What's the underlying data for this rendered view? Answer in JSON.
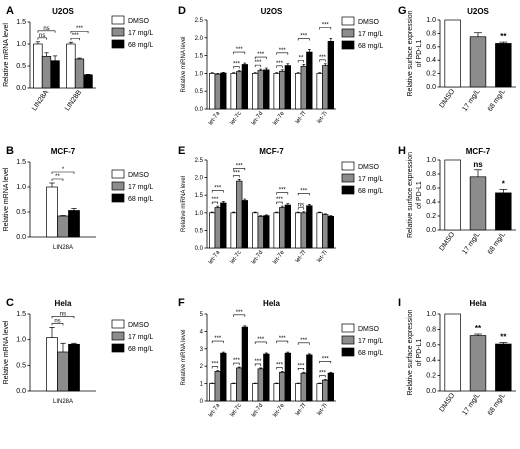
{
  "figure": {
    "panel_labels": [
      "A",
      "B",
      "C",
      "D",
      "E",
      "F",
      "G",
      "H",
      "I"
    ],
    "legend_labels": [
      "DMSO",
      "17 mg/L",
      "68 mg/L"
    ],
    "colors": {
      "dmso": "#ffffff",
      "c17": "#8c8c8c",
      "c68": "#000000",
      "stroke": "#000000"
    }
  },
  "chart_data": [
    {
      "id": "A",
      "type": "bar",
      "title": "U2OS",
      "ylabel": "Relative mRNA level",
      "xlabel": "",
      "categories": [
        "LIN28A",
        "LIN28B"
      ],
      "series": [
        {
          "name": "DMSO",
          "values": [
            1.0,
            1.0
          ],
          "errors": [
            0.05,
            0.04
          ]
        },
        {
          "name": "17 mg/L",
          "values": [
            0.72,
            0.66
          ],
          "errors": [
            0.08,
            0.02
          ]
        },
        {
          "name": "68 mg/L",
          "values": [
            0.62,
            0.3
          ],
          "errors": [
            0.11,
            0.01
          ]
        }
      ],
      "ylim": [
        0,
        1.5
      ],
      "yticks": [
        0.0,
        0.5,
        1.0,
        1.5
      ],
      "significance": [
        {
          "cat": 0,
          "from": 0,
          "to": 1,
          "label": "ns"
        },
        {
          "cat": 0,
          "from": 0,
          "to": 2,
          "label": "ns"
        },
        {
          "cat": 1,
          "from": 0,
          "to": 1,
          "label": "***"
        },
        {
          "cat": 1,
          "from": 0,
          "to": 2,
          "label": "***"
        }
      ],
      "legend": "top-right"
    },
    {
      "id": "B",
      "type": "bar",
      "title": "MCF-7",
      "ylabel": "Relative mRNA level",
      "xlabel": "LIN28A",
      "categories": [
        ""
      ],
      "series": [
        {
          "name": "DMSO",
          "values": [
            1.0
          ],
          "errors": [
            0.08
          ]
        },
        {
          "name": "17 mg/L",
          "values": [
            0.42
          ],
          "errors": [
            0.01
          ]
        },
        {
          "name": "68 mg/L",
          "values": [
            0.53
          ],
          "errors": [
            0.04
          ]
        }
      ],
      "ylim": [
        0,
        1.5
      ],
      "yticks": [
        0.0,
        0.5,
        1.0,
        1.5
      ],
      "significance": [
        {
          "cat": 0,
          "from": 0,
          "to": 1,
          "label": "**"
        },
        {
          "cat": 0,
          "from": 0,
          "to": 2,
          "label": "*"
        }
      ],
      "legend": "top-right"
    },
    {
      "id": "C",
      "type": "bar",
      "title": "Hela",
      "ylabel": "Relative mRNA level",
      "xlabel": "LIN28A",
      "categories": [
        ""
      ],
      "series": [
        {
          "name": "DMSO",
          "values": [
            1.04
          ],
          "errors": [
            0.2
          ]
        },
        {
          "name": "17 mg/L",
          "values": [
            0.76
          ],
          "errors": [
            0.17
          ]
        },
        {
          "name": "68 mg/L",
          "values": [
            0.91
          ],
          "errors": [
            0.02
          ]
        }
      ],
      "ylim": [
        0,
        1.5
      ],
      "yticks": [
        0.0,
        0.5,
        1.0,
        1.5
      ],
      "significance": [
        {
          "cat": 0,
          "from": 0,
          "to": 1,
          "label": "ns"
        },
        {
          "cat": 0,
          "from": 0,
          "to": 2,
          "label": "ns"
        }
      ],
      "legend": "top-right"
    },
    {
      "id": "D",
      "type": "bar",
      "title": "U2OS",
      "ylabel": "Relative miRNA level",
      "xlabel": "",
      "categories": [
        "let-7a",
        "let-7c",
        "let-7d",
        "let-7e",
        "let-7f",
        "let-7i"
      ],
      "series": [
        {
          "name": "DMSO",
          "values": [
            1.0,
            1.0,
            1.0,
            1.0,
            1.0,
            1.0
          ],
          "errors": [
            0.02,
            0.02,
            0.02,
            0.02,
            0.02,
            0.02
          ]
        },
        {
          "name": "17 mg/L",
          "values": [
            0.98,
            1.05,
            1.08,
            1.06,
            1.2,
            1.22
          ],
          "errors": [
            0.02,
            0.03,
            0.04,
            0.04,
            0.05,
            0.05
          ]
        },
        {
          "name": "68 mg/L",
          "values": [
            1.01,
            1.25,
            1.1,
            1.22,
            1.6,
            1.9
          ],
          "errors": [
            0.02,
            0.04,
            0.05,
            0.05,
            0.07,
            0.08
          ]
        }
      ],
      "ylim": [
        0,
        2.5
      ],
      "yticks": [
        0.0,
        0.5,
        1.0,
        1.5,
        2.0,
        2.5
      ],
      "significance": [
        {
          "cat": 1,
          "from": 0,
          "to": 1,
          "label": "***"
        },
        {
          "cat": 1,
          "from": 0,
          "to": 2,
          "label": "***"
        },
        {
          "cat": 2,
          "from": 0,
          "to": 1,
          "label": "***"
        },
        {
          "cat": 2,
          "from": 0,
          "to": 2,
          "label": "***"
        },
        {
          "cat": 3,
          "from": 0,
          "to": 1,
          "label": "***"
        },
        {
          "cat": 3,
          "from": 0,
          "to": 2,
          "label": "***"
        },
        {
          "cat": 4,
          "from": 0,
          "to": 1,
          "label": "**"
        },
        {
          "cat": 4,
          "from": 0,
          "to": 2,
          "label": "***"
        },
        {
          "cat": 5,
          "from": 0,
          "to": 1,
          "label": "***"
        },
        {
          "cat": 5,
          "from": 0,
          "to": 2,
          "label": "***"
        }
      ],
      "legend": "top-right"
    },
    {
      "id": "E",
      "type": "bar",
      "title": "MCF-7",
      "ylabel": "Relative miRNA level",
      "xlabel": "",
      "categories": [
        "let-7a",
        "let-7c",
        "let-7d",
        "let-7e",
        "let-7f",
        "let-7i"
      ],
      "series": [
        {
          "name": "DMSO",
          "values": [
            1.0,
            1.0,
            1.0,
            1.0,
            1.0,
            1.0
          ],
          "errors": [
            0.02,
            0.02,
            0.02,
            0.02,
            0.02,
            0.02
          ]
        },
        {
          "name": "17 mg/L",
          "values": [
            1.15,
            1.9,
            0.9,
            1.15,
            1.0,
            0.95
          ],
          "errors": [
            0.04,
            0.05,
            0.02,
            0.04,
            0.03,
            0.02
          ]
        },
        {
          "name": "68 mg/L",
          "values": [
            1.28,
            1.35,
            0.92,
            1.22,
            1.2,
            0.9
          ],
          "errors": [
            0.04,
            0.04,
            0.02,
            0.04,
            0.04,
            0.02
          ]
        }
      ],
      "ylim": [
        0,
        2.5
      ],
      "yticks": [
        0.0,
        0.5,
        1.0,
        1.5,
        2.0,
        2.5
      ],
      "significance": [
        {
          "cat": 0,
          "from": 0,
          "to": 1,
          "label": "***"
        },
        {
          "cat": 0,
          "from": 0,
          "to": 2,
          "label": "***"
        },
        {
          "cat": 1,
          "from": 0,
          "to": 1,
          "label": "***"
        },
        {
          "cat": 1,
          "from": 0,
          "to": 2,
          "label": "***"
        },
        {
          "cat": 3,
          "from": 0,
          "to": 1,
          "label": "***"
        },
        {
          "cat": 3,
          "from": 0,
          "to": 2,
          "label": "***"
        },
        {
          "cat": 4,
          "from": 0,
          "to": 1,
          "label": "ns"
        },
        {
          "cat": 4,
          "from": 0,
          "to": 2,
          "label": "***"
        }
      ],
      "legend": "top-right"
    },
    {
      "id": "F",
      "type": "bar",
      "title": "Hela",
      "ylabel": "Relative miRNA level",
      "xlabel": "",
      "categories": [
        "let-7a",
        "let-7c",
        "let-7d",
        "let-7e",
        "let-7f",
        "let-7i"
      ],
      "series": [
        {
          "name": "DMSO",
          "values": [
            1.0,
            1.0,
            1.0,
            1.0,
            1.0,
            1.0
          ],
          "errors": [
            0.03,
            0.03,
            0.03,
            0.03,
            0.03,
            0.03
          ]
        },
        {
          "name": "17 mg/L",
          "values": [
            1.7,
            1.9,
            1.85,
            1.65,
            1.6,
            1.2
          ],
          "errors": [
            0.05,
            0.05,
            0.05,
            0.05,
            0.05,
            0.04
          ]
        },
        {
          "name": "68 mg/L",
          "values": [
            2.75,
            4.25,
            2.7,
            2.75,
            2.65,
            1.6
          ],
          "errors": [
            0.06,
            0.07,
            0.06,
            0.06,
            0.06,
            0.05
          ]
        }
      ],
      "ylim": [
        0,
        5
      ],
      "yticks": [
        0,
        1,
        2,
        3,
        4,
        5
      ],
      "significance": [
        {
          "cat": 0,
          "from": 0,
          "to": 1,
          "label": "***"
        },
        {
          "cat": 0,
          "from": 0,
          "to": 2,
          "label": "***"
        },
        {
          "cat": 1,
          "from": 0,
          "to": 1,
          "label": "***"
        },
        {
          "cat": 1,
          "from": 0,
          "to": 2,
          "label": "***"
        },
        {
          "cat": 2,
          "from": 0,
          "to": 1,
          "label": "***"
        },
        {
          "cat": 2,
          "from": 0,
          "to": 2,
          "label": "***"
        },
        {
          "cat": 3,
          "from": 0,
          "to": 1,
          "label": "***"
        },
        {
          "cat": 3,
          "from": 0,
          "to": 2,
          "label": "***"
        },
        {
          "cat": 4,
          "from": 0,
          "to": 1,
          "label": "***"
        },
        {
          "cat": 4,
          "from": 0,
          "to": 2,
          "label": "***"
        },
        {
          "cat": 5,
          "from": 0,
          "to": 1,
          "label": "***"
        },
        {
          "cat": 5,
          "from": 0,
          "to": 2,
          "label": "***"
        }
      ],
      "legend": "top-right"
    },
    {
      "id": "G",
      "type": "bar",
      "title": "U2OS",
      "ylabel": "Relative surface expression of PD-L1",
      "xlabel": "",
      "categories": [
        "DMSO",
        "17 mg/L",
        "68 mg/L"
      ],
      "series": [
        {
          "name": "",
          "values": [
            1.0,
            0.75,
            0.65
          ],
          "errors": [
            0.0,
            0.06,
            0.02
          ]
        }
      ],
      "ylim": [
        0,
        1.0
      ],
      "yticks": [
        0.0,
        0.2,
        0.4,
        0.6,
        0.8,
        1.0
      ],
      "marks": [
        "",
        "",
        "**"
      ]
    },
    {
      "id": "H",
      "type": "bar",
      "title": "MCF-7",
      "ylabel": "Relative surface expression of PD-L1",
      "xlabel": "",
      "categories": [
        "DMSO",
        "17 mg/L",
        "68 mg/L"
      ],
      "series": [
        {
          "name": "",
          "values": [
            1.0,
            0.76,
            0.53
          ],
          "errors": [
            0.0,
            0.1,
            0.05
          ]
        }
      ],
      "ylim": [
        0,
        1.0
      ],
      "yticks": [
        0.0,
        0.2,
        0.4,
        0.6,
        0.8,
        1.0
      ],
      "marks": [
        "",
        "ns",
        "*"
      ]
    },
    {
      "id": "I",
      "type": "bar",
      "title": "Hela",
      "ylabel": "Relative surface expression of PD-L1",
      "xlabel": "",
      "categories": [
        "DMSO",
        "17 mg/L",
        "68 mg/L"
      ],
      "series": [
        {
          "name": "",
          "values": [
            1.0,
            0.72,
            0.61
          ],
          "errors": [
            0.0,
            0.02,
            0.02
          ]
        }
      ],
      "ylim": [
        0,
        1.0
      ],
      "yticks": [
        0.0,
        0.2,
        0.4,
        0.6,
        0.8,
        1.0
      ],
      "marks": [
        "",
        "**",
        "**"
      ]
    }
  ]
}
